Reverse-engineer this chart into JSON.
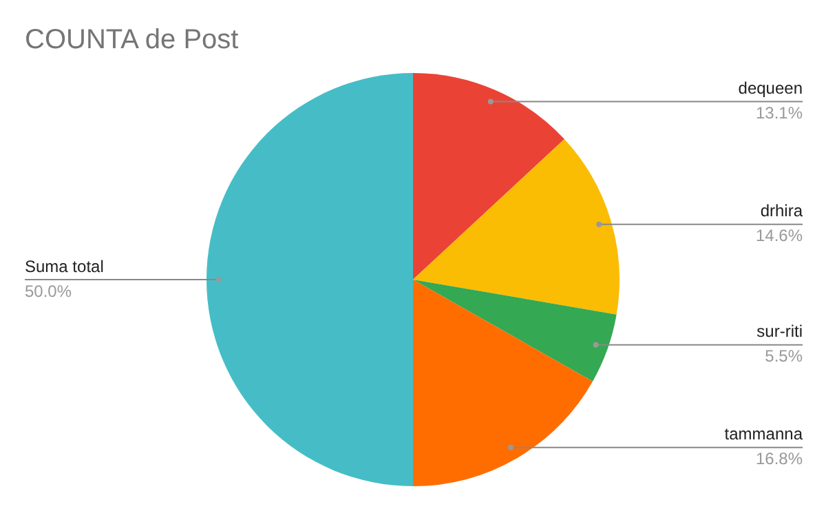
{
  "chart_data": {
    "type": "pie",
    "title": "COUNTA de Post",
    "categories": [
      "dequeen",
      "drhira",
      "sur-riti",
      "tammanna",
      "Suma total"
    ],
    "values": [
      13.1,
      14.6,
      5.5,
      16.8,
      50.0
    ],
    "value_labels": [
      "13.1%",
      "14.6%",
      "5.5%",
      "16.8%",
      "50.0%"
    ],
    "colors": [
      "#ea4335",
      "#fbbc04",
      "#34a853",
      "#ff6d01",
      "#46bdc6"
    ],
    "legend": false
  }
}
